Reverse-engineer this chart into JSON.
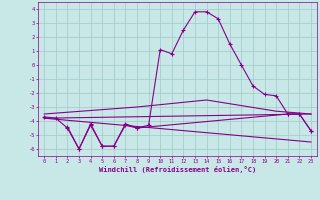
{
  "xlabel": "Windchill (Refroidissement éolien,°C)",
  "xlim": [
    -0.5,
    23.5
  ],
  "ylim": [
    -6.5,
    4.5
  ],
  "yticks": [
    -6,
    -5,
    -4,
    -3,
    -2,
    -1,
    0,
    1,
    2,
    3,
    4
  ],
  "xticks": [
    0,
    1,
    2,
    3,
    4,
    5,
    6,
    7,
    8,
    9,
    10,
    11,
    12,
    13,
    14,
    15,
    16,
    17,
    18,
    19,
    20,
    21,
    22,
    23
  ],
  "background_color": "#c8e8e8",
  "grid_color": "#a0c8c8",
  "line_color": "#880088",
  "line1_x": [
    0,
    1,
    2,
    3,
    4,
    5,
    6,
    7,
    8,
    9,
    10,
    11,
    12,
    13,
    14,
    15,
    16,
    17,
    18,
    19,
    20,
    21,
    22,
    23
  ],
  "line1_y": [
    -3.7,
    -3.8,
    -4.5,
    -6.0,
    -4.2,
    -5.8,
    -5.8,
    -4.2,
    -4.5,
    -4.3,
    1.1,
    0.8,
    2.5,
    3.8,
    3.8,
    3.3,
    1.5,
    0.0,
    -1.5,
    -2.1,
    -2.2,
    -3.5,
    -3.5,
    -4.7
  ],
  "line2_x": [
    0,
    23
  ],
  "line2_y": [
    -3.8,
    -5.5
  ],
  "line3_x": [
    0,
    23
  ],
  "line3_y": [
    -3.8,
    -3.5
  ],
  "line4_x": [
    0,
    8,
    14,
    20,
    23
  ],
  "line4_y": [
    -3.5,
    -3.0,
    -2.5,
    -3.3,
    -3.5
  ],
  "line5_x": [
    2,
    3,
    4,
    5,
    6,
    7,
    8,
    21,
    22,
    23
  ],
  "line5_y": [
    -4.4,
    -6.0,
    -4.3,
    -5.8,
    -5.8,
    -4.3,
    -4.5,
    -3.5,
    -3.5,
    -4.7
  ]
}
